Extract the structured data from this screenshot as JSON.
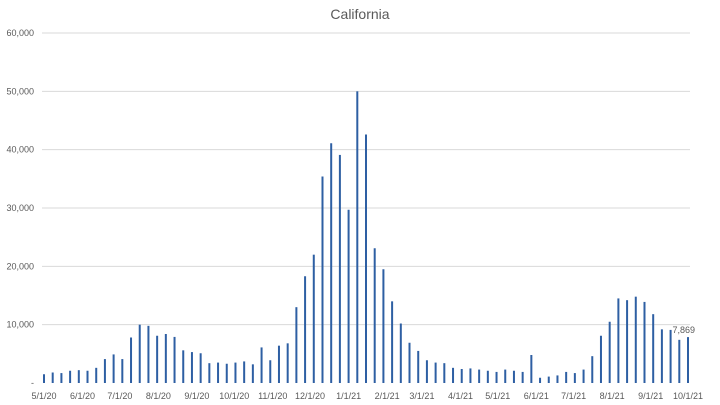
{
  "chart_data": {
    "type": "bar",
    "title": "California",
    "xlabel": "",
    "ylabel": "",
    "ylim": [
      0,
      60000
    ],
    "y_ticks": [
      "-",
      "10,000",
      "20,000",
      "30,000",
      "40,000",
      "50,000",
      "60,000"
    ],
    "grid": "horizontal",
    "legend": "none",
    "color": "#2e5fa3",
    "x_tick_labels": [
      "5/1/20",
      "6/1/20",
      "7/1/20",
      "8/1/20",
      "9/1/20",
      "10/1/20",
      "11/1/20",
      "12/1/20",
      "1/1/21",
      "2/1/21",
      "3/1/21",
      "4/1/21",
      "5/1/21",
      "6/1/21",
      "7/1/21",
      "8/1/21",
      "9/1/21",
      "10/1/21"
    ],
    "x": [
      "5/1/20",
      "5/8/20",
      "5/15/20",
      "5/22/20",
      "5/29/20",
      "6/5/20",
      "6/12/20",
      "6/19/20",
      "6/26/20",
      "7/3/20",
      "7/10/20",
      "7/17/20",
      "7/24/20",
      "7/31/20",
      "8/7/20",
      "8/14/20",
      "8/21/20",
      "8/28/20",
      "9/4/20",
      "9/11/20",
      "9/18/20",
      "9/25/20",
      "10/2/20",
      "10/9/20",
      "10/16/20",
      "10/23/20",
      "10/30/20",
      "11/6/20",
      "11/13/20",
      "11/20/20",
      "11/27/20",
      "12/4/20",
      "12/11/20",
      "12/18/20",
      "12/25/20",
      "1/1/21",
      "1/8/21",
      "1/15/21",
      "1/22/21",
      "1/29/21",
      "2/5/21",
      "2/12/21",
      "2/19/21",
      "2/26/21",
      "3/5/21",
      "3/12/21",
      "3/19/21",
      "3/26/21",
      "4/2/21",
      "4/9/21",
      "4/16/21",
      "4/23/21",
      "4/30/21",
      "5/7/21",
      "5/14/21",
      "5/21/21",
      "5/28/21",
      "6/4/21",
      "6/11/21",
      "6/18/21",
      "6/25/21",
      "7/2/21",
      "7/9/21",
      "7/16/21",
      "7/23/21",
      "7/30/21",
      "8/6/21",
      "8/13/21",
      "8/20/21",
      "8/27/21",
      "9/3/21",
      "9/10/21",
      "9/17/21",
      "9/24/21",
      "10/1/21"
    ],
    "values": [
      1500,
      1800,
      1700,
      2100,
      2200,
      2100,
      2600,
      4100,
      4900,
      4100,
      7800,
      10000,
      9800,
      8100,
      8400,
      7900,
      5600,
      5300,
      5100,
      3400,
      3500,
      3300,
      3500,
      3700,
      3200,
      6100,
      3900,
      6400,
      6800,
      13000,
      18300,
      22000,
      35400,
      41100,
      39100,
      29700,
      50000,
      42600,
      23100,
      19500,
      14000,
      10200,
      6900,
      5500,
      3900,
      3500,
      3400,
      2600,
      2400,
      2500,
      2300,
      2100,
      1900,
      2300,
      2100,
      1900,
      4800,
      900,
      1100,
      1300,
      1900,
      1700,
      2300,
      4600,
      8100,
      10500,
      14500,
      14200,
      14800,
      13900,
      11800,
      9200,
      9100,
      7400,
      7869
    ],
    "data_labels": [
      {
        "index": 74,
        "text": "7,869"
      }
    ]
  }
}
